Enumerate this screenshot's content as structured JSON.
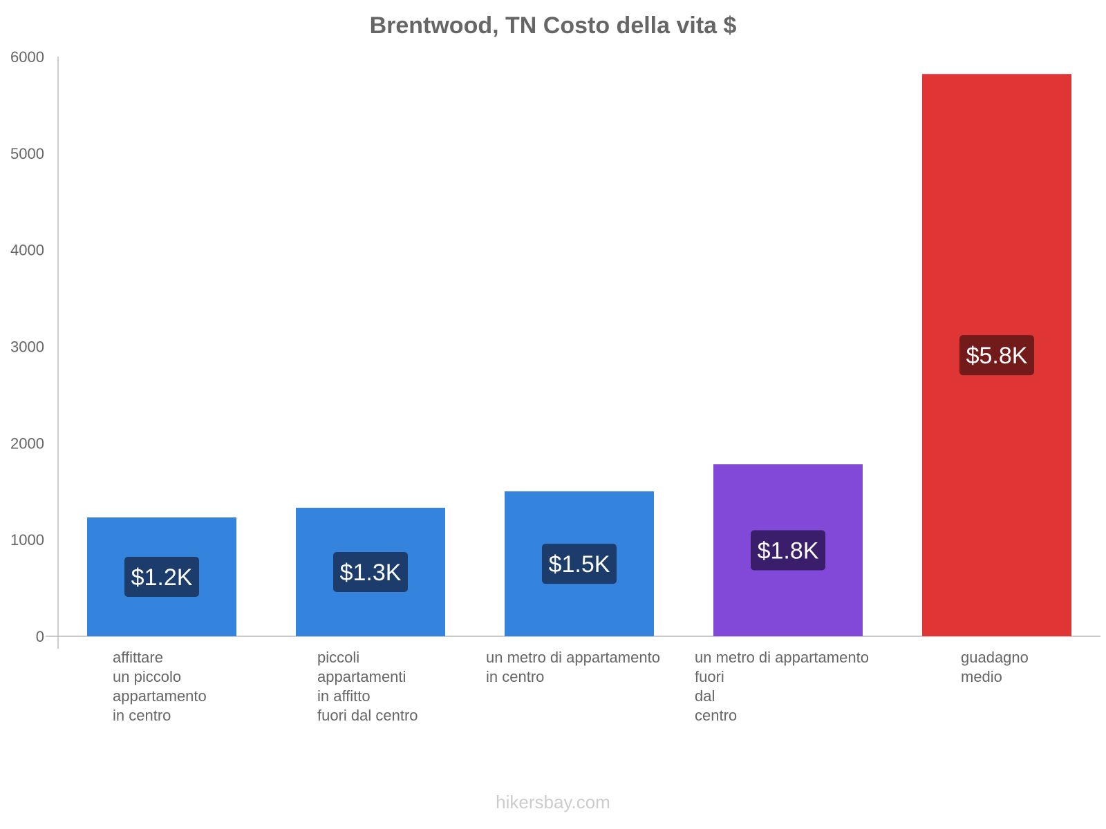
{
  "chart_data": {
    "type": "bar",
    "title": "Brentwood, TN Costo della vita $",
    "xlabel": "",
    "ylabel": "",
    "ylim": [
      0,
      6000
    ],
    "yticks": [
      0,
      1000,
      2000,
      3000,
      4000,
      5000,
      6000
    ],
    "grid": false,
    "categories": [
      [
        "affittare",
        "un piccolo",
        "appartamento",
        "in centro"
      ],
      [
        "piccoli",
        "appartamenti",
        "in affitto",
        "fuori dal centro"
      ],
      [
        "un metro di appartamento",
        "in centro"
      ],
      [
        "un metro di appartamento",
        "fuori",
        "dal",
        "centro"
      ],
      [
        "guadagno",
        "medio"
      ]
    ],
    "values": [
      1230,
      1330,
      1500,
      1780,
      5820
    ],
    "data_labels": [
      "$1.2K",
      "$1.3K",
      "$1.5K",
      "$1.8K",
      "$5.8K"
    ],
    "colors": [
      "#3483dd",
      "#3483dd",
      "#3483dd",
      "#8249d8",
      "#e03535"
    ],
    "label_box_colors": [
      "#1c3d6b",
      "#1c3d6b",
      "#1c3d6b",
      "#3b1e6b",
      "#731b1b"
    ]
  },
  "footer": "hikersbay.com"
}
